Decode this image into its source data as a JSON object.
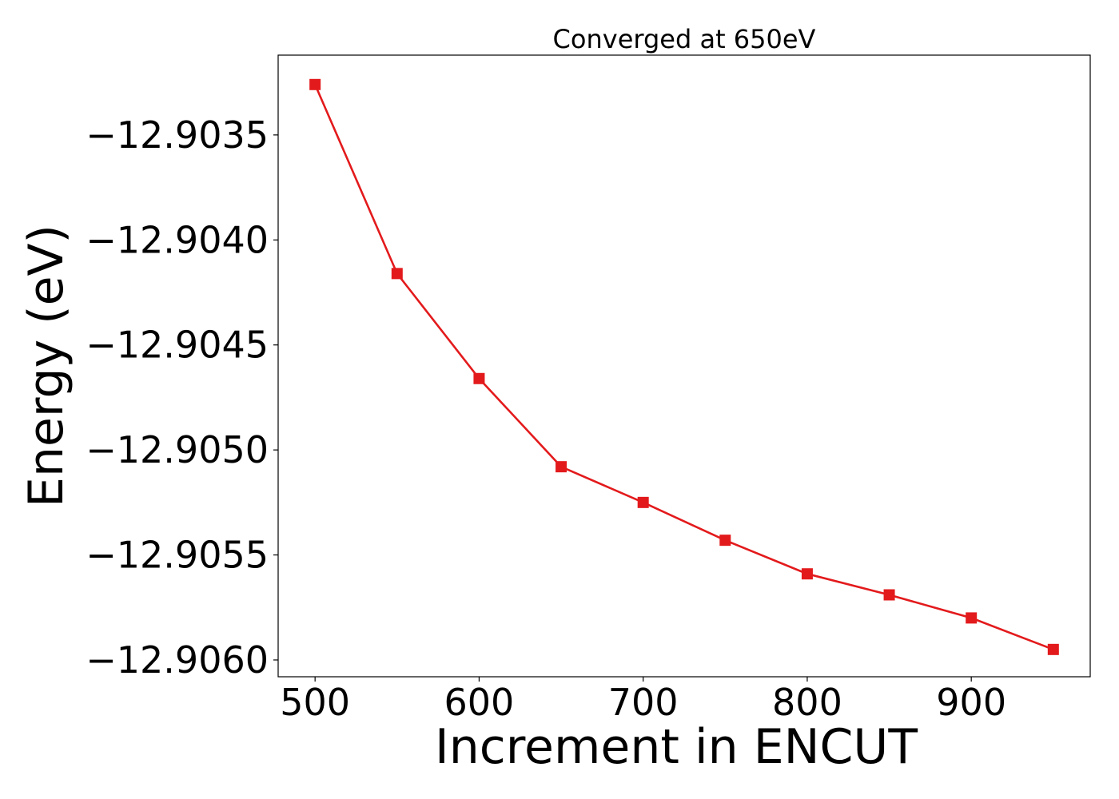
{
  "chart_data": {
    "type": "line",
    "title": "Converged at 650eV",
    "xlabel": "Increment in ENCUT",
    "ylabel": "Energy (eV)",
    "x": [
      500,
      550,
      600,
      650,
      700,
      750,
      800,
      850,
      900,
      950
    ],
    "series": [
      {
        "values": [
          -12.90326,
          -12.90416,
          -12.90466,
          -12.90508,
          -12.90525,
          -12.90543,
          -12.90559,
          -12.90569,
          -12.9058,
          -12.90595
        ],
        "color": "#e31a1c",
        "marker": "square"
      }
    ],
    "xlim": [
      477.5,
      972.5
    ],
    "ylim": [
      -12.90608,
      -12.90312
    ],
    "xticks": [
      500,
      600,
      700,
      800,
      900
    ],
    "xtick_labels": [
      "500",
      "600",
      "700",
      "800",
      "900"
    ],
    "yticks": [
      -12.9035,
      -12.904,
      -12.9045,
      -12.905,
      -12.9055,
      -12.906
    ],
    "ytick_labels": [
      "−12.9035",
      "−12.9040",
      "−12.9045",
      "−12.9050",
      "−12.9055",
      "−12.9060"
    ],
    "grid": false,
    "legend": "none"
  }
}
